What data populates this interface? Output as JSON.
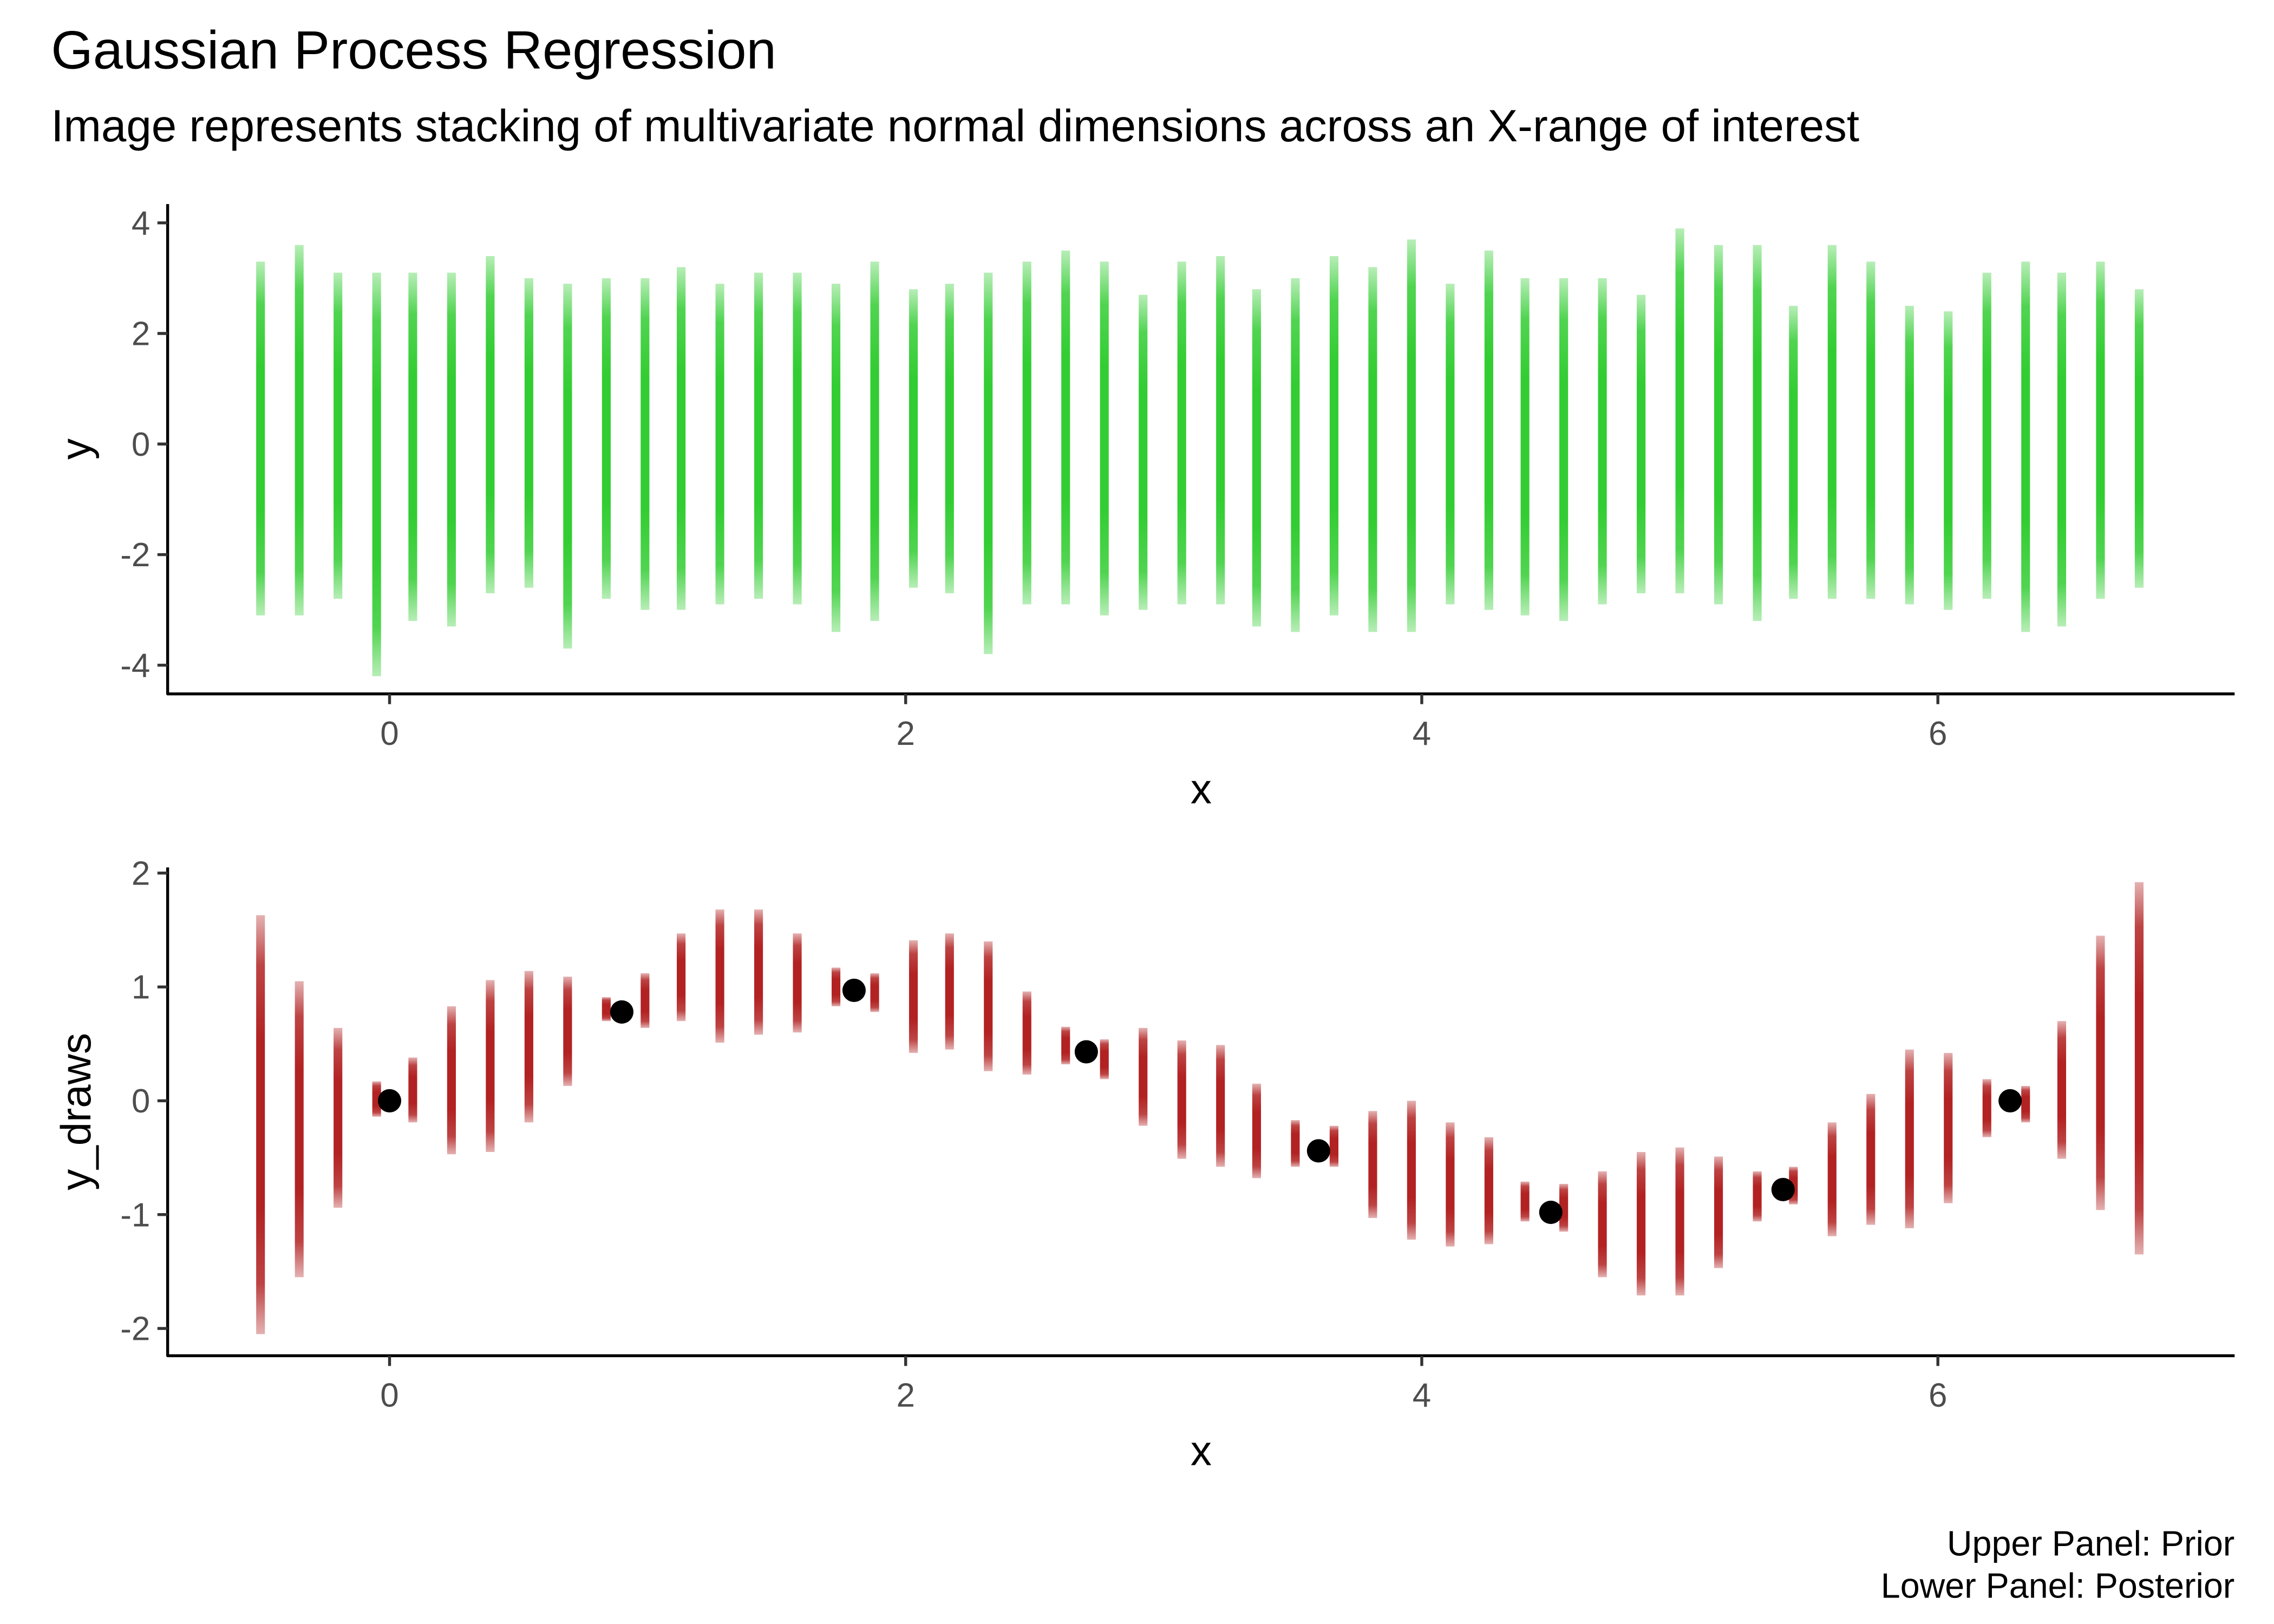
{
  "title": "Gaussian Process Regression",
  "subtitle": "Image represents stacking of multivariate normal dimensions across an X-range of interest",
  "caption": [
    "Upper Panel: Prior",
    "Lower Panel: Posterior"
  ],
  "chart_data": [
    {
      "type": "scatter",
      "x_label": "x",
      "y_label": "y",
      "xlim": [
        -0.86,
        7.15
      ],
      "ylim": [
        -4.52,
        4.34
      ],
      "xticks": [
        0,
        2,
        4,
        6
      ],
      "yticks": [
        -4,
        -2,
        0,
        2,
        4
      ],
      "series": [
        {
          "style": "strip",
          "color": "#32CD32",
          "x": [
            -0.5,
            -0.35,
            -0.2,
            -0.05,
            0.09,
            0.24,
            0.39,
            0.54,
            0.69,
            0.84,
            0.99,
            1.13,
            1.28,
            1.43,
            1.58,
            1.73,
            1.88,
            2.03,
            2.17,
            2.32,
            2.47,
            2.62,
            2.77,
            2.92,
            3.07,
            3.22,
            3.36,
            3.51,
            3.66,
            3.81,
            3.96,
            4.11,
            4.26,
            4.4,
            4.55,
            4.7,
            4.85,
            5.0,
            5.15,
            5.3,
            5.44,
            5.59,
            5.74,
            5.89,
            6.04,
            6.19,
            6.34,
            6.48,
            6.63,
            6.78
          ],
          "ymin": [
            -3.1,
            -3.1,
            -2.8,
            -4.2,
            -3.2,
            -3.3,
            -2.7,
            -2.6,
            -3.7,
            -2.8,
            -3.0,
            -3.0,
            -2.9,
            -2.8,
            -2.9,
            -3.4,
            -3.2,
            -2.6,
            -2.7,
            -3.8,
            -2.9,
            -2.9,
            -3.1,
            -3.0,
            -2.9,
            -2.9,
            -3.3,
            -3.4,
            -3.1,
            -3.4,
            -3.4,
            -2.9,
            -3.0,
            -3.1,
            -3.2,
            -2.9,
            -2.7,
            -2.7,
            -2.9,
            -3.2,
            -2.8,
            -2.8,
            -2.8,
            -2.9,
            -3.0,
            -2.8,
            -3.4,
            -3.3,
            -2.8,
            -2.6
          ],
          "ymax": [
            3.3,
            3.6,
            3.1,
            3.1,
            3.1,
            3.1,
            3.4,
            3.0,
            2.9,
            3.0,
            3.0,
            3.2,
            2.9,
            3.1,
            3.1,
            2.9,
            3.3,
            2.8,
            2.9,
            3.1,
            3.3,
            3.5,
            3.3,
            2.7,
            3.3,
            3.4,
            2.8,
            3.0,
            3.4,
            3.2,
            3.7,
            2.9,
            3.5,
            3.0,
            3.0,
            3.0,
            2.7,
            3.9,
            3.6,
            3.6,
            2.5,
            3.6,
            3.3,
            2.5,
            2.4,
            3.1,
            3.3,
            3.1,
            3.3,
            2.8
          ]
        }
      ]
    },
    {
      "type": "scatter",
      "x_label": "x",
      "y_label": "y_draws",
      "xlim": [
        -0.86,
        7.15
      ],
      "ylim": [
        -2.24,
        2.05
      ],
      "xticks": [
        0,
        2,
        4,
        6
      ],
      "yticks": [
        -2,
        -1,
        0,
        1,
        2
      ],
      "series": [
        {
          "style": "strip",
          "color": "#B22222",
          "x": [
            -0.5,
            -0.35,
            -0.2,
            -0.05,
            0.09,
            0.24,
            0.39,
            0.54,
            0.69,
            0.84,
            0.99,
            1.13,
            1.28,
            1.43,
            1.58,
            1.73,
            1.88,
            2.03,
            2.17,
            2.32,
            2.47,
            2.62,
            2.77,
            2.92,
            3.07,
            3.22,
            3.36,
            3.51,
            3.66,
            3.81,
            3.96,
            4.11,
            4.26,
            4.4,
            4.55,
            4.7,
            4.85,
            5.0,
            5.15,
            5.3,
            5.44,
            5.59,
            5.74,
            5.89,
            6.04,
            6.19,
            6.34,
            6.48,
            6.63,
            6.78
          ],
          "ymin": [
            -2.05,
            -1.55,
            -0.94,
            -0.14,
            -0.19,
            -0.47,
            -0.45,
            -0.19,
            0.13,
            0.7,
            0.64,
            0.7,
            0.51,
            0.58,
            0.6,
            0.83,
            0.78,
            0.42,
            0.45,
            0.26,
            0.23,
            0.32,
            0.19,
            -0.22,
            -0.51,
            -0.58,
            -0.68,
            -0.58,
            -0.58,
            -1.03,
            -1.22,
            -1.28,
            -1.26,
            -1.06,
            -1.15,
            -1.55,
            -1.71,
            -1.71,
            -1.47,
            -1.06,
            -0.91,
            -1.19,
            -1.09,
            -1.12,
            -0.9,
            -0.32,
            -0.19,
            -0.51,
            -0.96,
            -1.35
          ],
          "ymax": [
            1.63,
            1.05,
            0.64,
            0.17,
            0.38,
            0.83,
            1.06,
            1.14,
            1.09,
            0.91,
            1.12,
            1.47,
            1.68,
            1.68,
            1.47,
            1.17,
            1.12,
            1.41,
            1.47,
            1.4,
            0.96,
            0.65,
            0.54,
            0.64,
            0.53,
            0.49,
            0.15,
            -0.17,
            -0.22,
            -0.09,
            0,
            -0.19,
            -0.32,
            -0.71,
            -0.73,
            -0.62,
            -0.45,
            -0.41,
            -0.49,
            -0.62,
            -0.58,
            -0.19,
            0.06,
            0.45,
            0.42,
            0.19,
            0.13,
            0.7,
            1.45,
            1.92
          ]
        },
        {
          "style": "point",
          "color": "#000000",
          "x": [
            0,
            0.9,
            1.8,
            2.7,
            3.6,
            4.5,
            5.4,
            6.28
          ],
          "values": [
            0,
            0.78,
            0.97,
            0.43,
            -0.44,
            -0.98,
            -0.78,
            0
          ]
        }
      ]
    }
  ]
}
